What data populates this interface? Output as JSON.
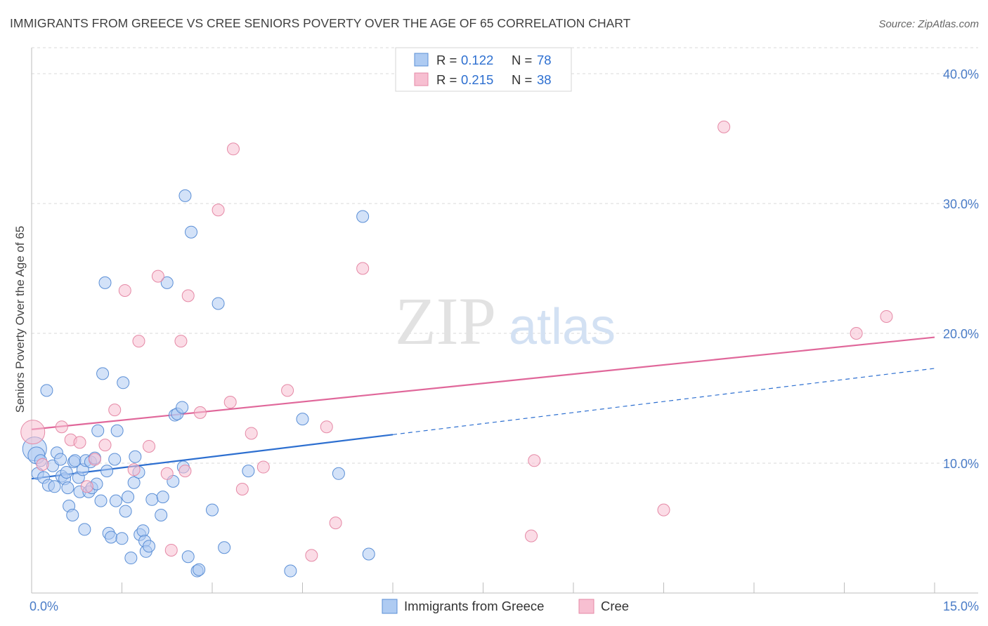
{
  "header": {
    "title": "IMMIGRANTS FROM GREECE VS CREE SENIORS POVERTY OVER THE AGE OF 65 CORRELATION CHART",
    "source": "Source: ZipAtlas.com"
  },
  "watermark": {
    "zip": "ZIP",
    "atlas": "atlas"
  },
  "colors": {
    "blue_fill": "#aecbf2",
    "blue_stroke": "#5b8fd6",
    "blue_line": "#2d6fd0",
    "pink_fill": "#f7bfd1",
    "pink_stroke": "#e589a6",
    "pink_line": "#e0679a",
    "tick_text": "#4a7cc7",
    "grid": "#d9d9d9"
  },
  "chart_data": {
    "type": "scatter",
    "title": "IMMIGRANTS FROM GREECE VS CREE SENIORS POVERTY OVER THE AGE OF 65 CORRELATION CHART",
    "xlabel": "",
    "ylabel": "Seniors Poverty Over the Age of 65",
    "xlim": [
      0,
      15
    ],
    "ylim": [
      0,
      42
    ],
    "x_tick_labels": [
      {
        "value": 0,
        "label": "0.0%"
      },
      {
        "value": 15,
        "label": "15.0%"
      }
    ],
    "y_tick_labels": [
      {
        "value": 10,
        "label": "10.0%"
      },
      {
        "value": 20,
        "label": "20.0%"
      },
      {
        "value": 30,
        "label": "30.0%"
      },
      {
        "value": 40,
        "label": "40.0%"
      }
    ],
    "x_minor_ticks": [
      1.5,
      3,
      4.5,
      6,
      7.5,
      9,
      10.5,
      12,
      13.5,
      15
    ],
    "legend": {
      "position": "top-center",
      "entries": [
        {
          "series": "Immigrants from Greece",
          "r_label": "R =",
          "r_value": "0.122",
          "n_label": "N =",
          "n_value": "78"
        },
        {
          "series": "Cree",
          "r_label": "R =",
          "r_value": "0.215",
          "n_label": "N =",
          "n_value": "38"
        }
      ]
    },
    "series": [
      {
        "name": "Immigrants from Greece",
        "color": "blue",
        "trend": {
          "x0": 0,
          "y0": 8.8,
          "x1": 6.0,
          "y1": 12.2,
          "dashed_to_x": 15,
          "dashed_to_y": 17.3
        },
        "points": [
          {
            "x": 0.05,
            "y": 11.1,
            "size": "xl"
          },
          {
            "x": 0.08,
            "y": 10.6,
            "size": "l"
          },
          {
            "x": 0.1,
            "y": 9.2,
            "size": "m"
          },
          {
            "x": 0.15,
            "y": 10.2,
            "size": "m"
          },
          {
            "x": 0.2,
            "y": 8.9,
            "size": "m"
          },
          {
            "x": 0.25,
            "y": 15.6,
            "size": "m"
          },
          {
            "x": 0.28,
            "y": 8.3,
            "size": "m"
          },
          {
            "x": 0.35,
            "y": 9.8,
            "size": "m"
          },
          {
            "x": 0.38,
            "y": 8.2,
            "size": "m"
          },
          {
            "x": 0.42,
            "y": 10.8,
            "size": "m"
          },
          {
            "x": 0.48,
            "y": 10.3,
            "size": "m"
          },
          {
            "x": 0.5,
            "y": 9.0,
            "size": "m"
          },
          {
            "x": 0.55,
            "y": 8.8,
            "size": "m"
          },
          {
            "x": 0.58,
            "y": 9.3,
            "size": "m"
          },
          {
            "x": 0.6,
            "y": 8.1,
            "size": "m"
          },
          {
            "x": 0.62,
            "y": 6.7,
            "size": "m"
          },
          {
            "x": 0.68,
            "y": 6.0,
            "size": "m"
          },
          {
            "x": 0.7,
            "y": 10.1,
            "size": "m"
          },
          {
            "x": 0.72,
            "y": 10.2,
            "size": "m"
          },
          {
            "x": 0.78,
            "y": 8.9,
            "size": "m"
          },
          {
            "x": 0.8,
            "y": 7.8,
            "size": "m"
          },
          {
            "x": 0.85,
            "y": 9.5,
            "size": "m"
          },
          {
            "x": 0.88,
            "y": 4.9,
            "size": "m"
          },
          {
            "x": 0.9,
            "y": 10.2,
            "size": "m"
          },
          {
            "x": 0.95,
            "y": 7.8,
            "size": "m"
          },
          {
            "x": 0.98,
            "y": 10.1,
            "size": "m"
          },
          {
            "x": 1.0,
            "y": 8.1,
            "size": "m"
          },
          {
            "x": 1.05,
            "y": 10.4,
            "size": "m"
          },
          {
            "x": 1.08,
            "y": 8.4,
            "size": "m"
          },
          {
            "x": 1.1,
            "y": 12.5,
            "size": "m"
          },
          {
            "x": 1.15,
            "y": 7.1,
            "size": "m"
          },
          {
            "x": 1.18,
            "y": 16.9,
            "size": "m"
          },
          {
            "x": 1.22,
            "y": 23.9,
            "size": "m"
          },
          {
            "x": 1.25,
            "y": 9.4,
            "size": "m"
          },
          {
            "x": 1.28,
            "y": 4.6,
            "size": "m"
          },
          {
            "x": 1.32,
            "y": 4.3,
            "size": "m"
          },
          {
            "x": 1.38,
            "y": 10.3,
            "size": "m"
          },
          {
            "x": 1.4,
            "y": 7.1,
            "size": "m"
          },
          {
            "x": 1.42,
            "y": 12.5,
            "size": "m"
          },
          {
            "x": 1.5,
            "y": 4.2,
            "size": "m"
          },
          {
            "x": 1.52,
            "y": 16.2,
            "size": "m"
          },
          {
            "x": 1.56,
            "y": 6.3,
            "size": "m"
          },
          {
            "x": 1.6,
            "y": 7.4,
            "size": "m"
          },
          {
            "x": 1.65,
            "y": 2.7,
            "size": "m"
          },
          {
            "x": 1.7,
            "y": 8.5,
            "size": "m"
          },
          {
            "x": 1.72,
            "y": 10.5,
            "size": "m"
          },
          {
            "x": 1.78,
            "y": 9.3,
            "size": "m"
          },
          {
            "x": 1.8,
            "y": 4.5,
            "size": "m"
          },
          {
            "x": 1.85,
            "y": 4.8,
            "size": "m"
          },
          {
            "x": 1.88,
            "y": 4.0,
            "size": "m"
          },
          {
            "x": 1.9,
            "y": 3.2,
            "size": "m"
          },
          {
            "x": 1.95,
            "y": 3.6,
            "size": "m"
          },
          {
            "x": 2.0,
            "y": 7.2,
            "size": "m"
          },
          {
            "x": 2.15,
            "y": 6.0,
            "size": "m"
          },
          {
            "x": 2.18,
            "y": 7.4,
            "size": "m"
          },
          {
            "x": 2.25,
            "y": 23.9,
            "size": "m"
          },
          {
            "x": 2.35,
            "y": 8.6,
            "size": "m"
          },
          {
            "x": 2.38,
            "y": 13.7,
            "size": "m"
          },
          {
            "x": 2.42,
            "y": 13.8,
            "size": "m"
          },
          {
            "x": 2.5,
            "y": 14.3,
            "size": "m"
          },
          {
            "x": 2.52,
            "y": 9.7,
            "size": "m"
          },
          {
            "x": 2.55,
            "y": 30.6,
            "size": "m"
          },
          {
            "x": 2.6,
            "y": 2.8,
            "size": "m"
          },
          {
            "x": 2.65,
            "y": 27.8,
            "size": "m"
          },
          {
            "x": 2.75,
            "y": 1.7,
            "size": "m"
          },
          {
            "x": 2.78,
            "y": 1.8,
            "size": "m"
          },
          {
            "x": 3.0,
            "y": 6.4,
            "size": "m"
          },
          {
            "x": 3.1,
            "y": 22.3,
            "size": "m"
          },
          {
            "x": 3.2,
            "y": 3.5,
            "size": "m"
          },
          {
            "x": 3.6,
            "y": 9.4,
            "size": "m"
          },
          {
            "x": 4.3,
            "y": 1.7,
            "size": "m"
          },
          {
            "x": 4.5,
            "y": 13.4,
            "size": "m"
          },
          {
            "x": 5.1,
            "y": 9.2,
            "size": "m"
          },
          {
            "x": 5.5,
            "y": 29.0,
            "size": "m"
          },
          {
            "x": 5.6,
            "y": 3.0,
            "size": "m"
          }
        ]
      },
      {
        "name": "Cree",
        "color": "pink",
        "trend": {
          "x0": 0,
          "y0": 12.6,
          "x1": 15,
          "y1": 19.7
        },
        "points": [
          {
            "x": 0.02,
            "y": 12.4,
            "size": "xl"
          },
          {
            "x": 0.18,
            "y": 9.9,
            "size": "m"
          },
          {
            "x": 0.5,
            "y": 12.8,
            "size": "m"
          },
          {
            "x": 0.65,
            "y": 11.8,
            "size": "m"
          },
          {
            "x": 0.8,
            "y": 11.6,
            "size": "m"
          },
          {
            "x": 0.92,
            "y": 8.2,
            "size": "m"
          },
          {
            "x": 1.05,
            "y": 10.3,
            "size": "m"
          },
          {
            "x": 1.22,
            "y": 11.4,
            "size": "m"
          },
          {
            "x": 1.38,
            "y": 14.1,
            "size": "m"
          },
          {
            "x": 1.55,
            "y": 23.3,
            "size": "m"
          },
          {
            "x": 1.7,
            "y": 9.5,
            "size": "m"
          },
          {
            "x": 1.78,
            "y": 19.4,
            "size": "m"
          },
          {
            "x": 1.95,
            "y": 11.3,
            "size": "m"
          },
          {
            "x": 2.1,
            "y": 24.4,
            "size": "m"
          },
          {
            "x": 2.25,
            "y": 9.2,
            "size": "m"
          },
          {
            "x": 2.32,
            "y": 3.3,
            "size": "m"
          },
          {
            "x": 2.48,
            "y": 19.4,
            "size": "m"
          },
          {
            "x": 2.55,
            "y": 9.4,
            "size": "m"
          },
          {
            "x": 2.6,
            "y": 22.9,
            "size": "m"
          },
          {
            "x": 2.8,
            "y": 13.9,
            "size": "m"
          },
          {
            "x": 3.1,
            "y": 29.5,
            "size": "m"
          },
          {
            "x": 3.3,
            "y": 14.7,
            "size": "m"
          },
          {
            "x": 3.35,
            "y": 34.2,
            "size": "m"
          },
          {
            "x": 3.5,
            "y": 8.0,
            "size": "m"
          },
          {
            "x": 3.65,
            "y": 12.3,
            "size": "m"
          },
          {
            "x": 3.85,
            "y": 9.7,
            "size": "m"
          },
          {
            "x": 4.25,
            "y": 15.6,
            "size": "m"
          },
          {
            "x": 4.65,
            "y": 2.9,
            "size": "m"
          },
          {
            "x": 4.9,
            "y": 12.8,
            "size": "m"
          },
          {
            "x": 5.05,
            "y": 5.4,
            "size": "m"
          },
          {
            "x": 5.5,
            "y": 25.0,
            "size": "m"
          },
          {
            "x": 8.3,
            "y": 4.4,
            "size": "m"
          },
          {
            "x": 8.35,
            "y": 10.2,
            "size": "m"
          },
          {
            "x": 10.5,
            "y": 6.4,
            "size": "m"
          },
          {
            "x": 11.5,
            "y": 35.9,
            "size": "m"
          },
          {
            "x": 13.7,
            "y": 20.0,
            "size": "m"
          },
          {
            "x": 14.2,
            "y": 21.3,
            "size": "m"
          }
        ]
      }
    ]
  }
}
